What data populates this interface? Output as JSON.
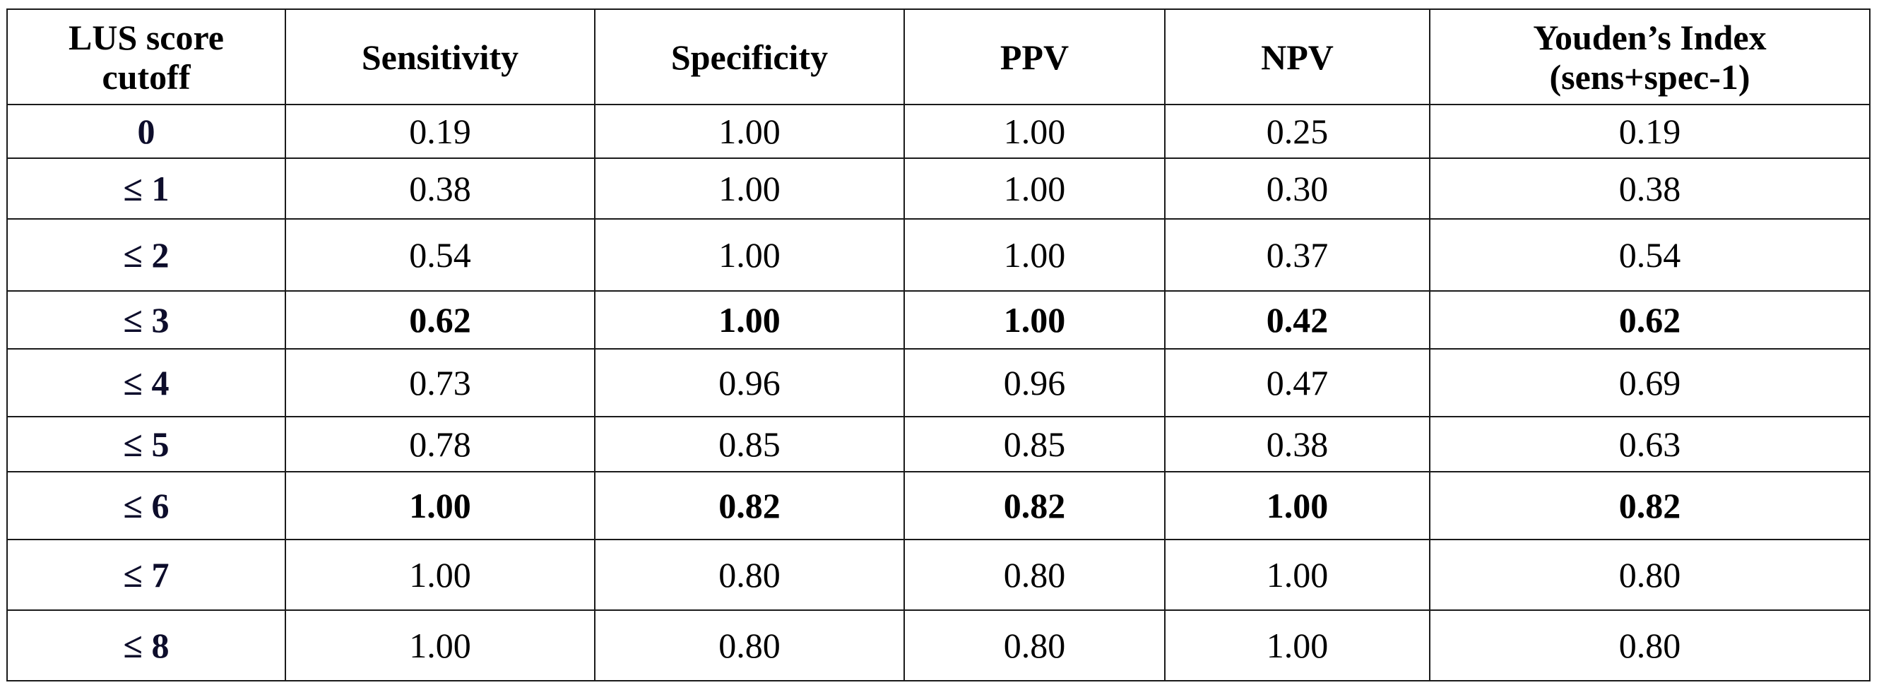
{
  "table": {
    "headers": [
      [
        "LUS score",
        "cutoff"
      ],
      [
        "Sensitivity"
      ],
      [
        "Specificity"
      ],
      [
        "PPV"
      ],
      [
        "NPV"
      ],
      [
        "Youden’s Index",
        "(sens+spec-1)"
      ]
    ],
    "rows": [
      {
        "cells": [
          "0",
          "0.19",
          "1.00",
          "1.00",
          "0.25",
          "0.19"
        ],
        "bold": false
      },
      {
        "cells": [
          "≤ 1",
          "0.38",
          "1.00",
          "1.00",
          "0.30",
          "0.38"
        ],
        "bold": false
      },
      {
        "cells": [
          "≤ 2",
          "0.54",
          "1.00",
          "1.00",
          "0.37",
          "0.54"
        ],
        "bold": false
      },
      {
        "cells": [
          "≤ 3",
          "0.62",
          "1.00",
          "1.00",
          "0.42",
          "0.62"
        ],
        "bold": true
      },
      {
        "cells": [
          "≤ 4",
          "0.73",
          "0.96",
          "0.96",
          "0.47",
          "0.69"
        ],
        "bold": false
      },
      {
        "cells": [
          "≤ 5",
          "0.78",
          "0.85",
          "0.85",
          "0.38",
          "0.63"
        ],
        "bold": false
      },
      {
        "cells": [
          "≤ 6",
          "1.00",
          "0.82",
          "0.82",
          "1.00",
          "0.82"
        ],
        "bold": true
      },
      {
        "cells": [
          "≤ 7",
          "1.00",
          "0.80",
          "0.80",
          "1.00",
          "0.80"
        ],
        "bold": false
      },
      {
        "cells": [
          "≤ 8",
          "1.00",
          "0.80",
          "0.80",
          "1.00",
          "0.80"
        ],
        "bold": false
      }
    ]
  }
}
